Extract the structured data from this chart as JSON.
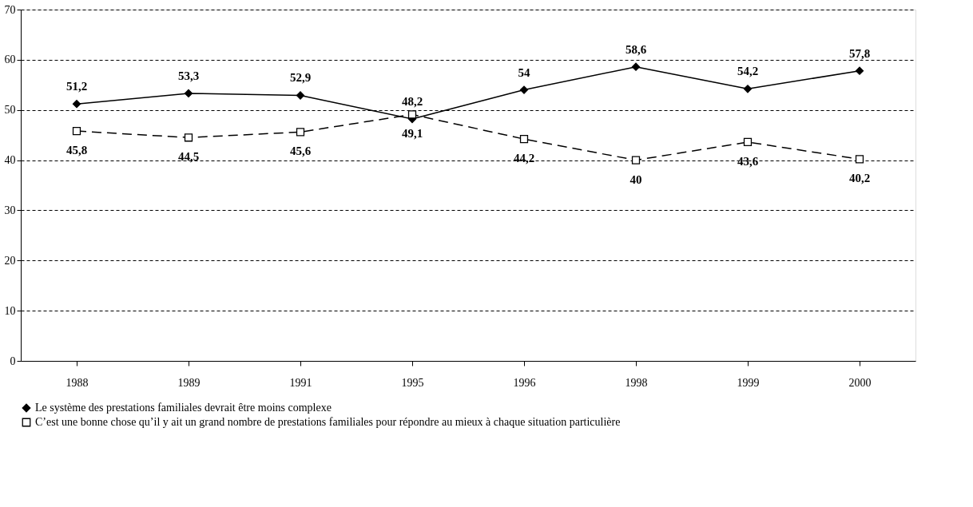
{
  "chart_data": {
    "type": "line",
    "categories": [
      "1988",
      "1989",
      "1991",
      "1995",
      "1996",
      "1998",
      "1999",
      "2000"
    ],
    "series": [
      {
        "name": "Le système des prestations familiales devrait être moins complexe",
        "color": "#000000",
        "values": [
          51.2,
          53.3,
          52.9,
          48.2,
          54,
          58.6,
          54.2,
          57.8
        ],
        "value_labels": [
          "51,2",
          "53,3",
          "52,9",
          "48,2",
          "54",
          "58,6",
          "54,2",
          "57,8"
        ],
        "marker": "diamond",
        "line_style": "solid"
      },
      {
        "name": "C’est une bonne chose qu’il y ait un grand nombre de prestations familiales pour répondre au mieux à chaque situation particulière",
        "color": "#000000",
        "values": [
          45.8,
          44.5,
          45.6,
          49.1,
          44.2,
          40,
          43.6,
          40.2
        ],
        "value_labels": [
          "45,8",
          "44,5",
          "45,6",
          "49,1",
          "44,2",
          "40",
          "43,6",
          "40,2"
        ],
        "marker": "square",
        "line_style": "dashed"
      }
    ],
    "ylim": [
      0,
      70
    ],
    "yticks": [
      0,
      10,
      20,
      30,
      40,
      50,
      60,
      70
    ],
    "grid": "y",
    "legend": "bottom"
  }
}
